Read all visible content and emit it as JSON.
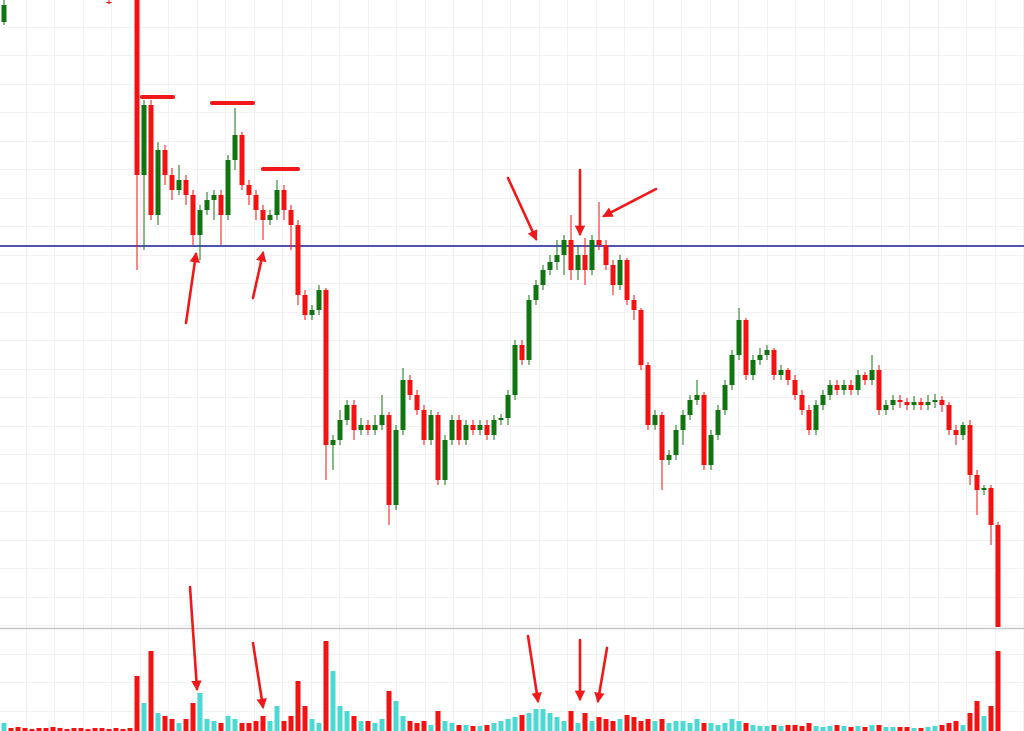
{
  "chart_data": {
    "type": "candlestick",
    "up_color": "#107510",
    "down_color": "#f21212",
    "ylim": [
      0,
      630
    ],
    "series": [
      {
        "open": [
          608,
          null,
          null,
          null,
          null,
          null,
          null,
          null,
          null,
          null,
          null,
          null,
          null,
          null,
          null,
          628,
          null,
          null,
          null,
          630,
          455,
          525,
          415,
          480,
          455,
          440,
          450,
          435,
          395,
          420,
          430,
          435,
          415,
          470,
          495,
          445,
          435,
          420,
          410,
          415,
          440,
          420,
          405,
          335,
          315,
          320,
          340,
          185,
          190,
          210,
          225,
          200,
          205,
          200,
          205,
          215,
          125,
          200,
          250,
          235,
          220,
          190,
          215,
          150,
          190,
          210,
          190,
          205,
          200,
          205,
          195,
          210,
          212,
          235,
          285,
          270,
          330,
          345,
          360,
          368,
          375,
          390,
          360,
          375,
          360,
          390,
          385,
          365,
          345,
          370,
          330,
          320,
          265,
          205,
          215,
          170,
          175,
          200,
          215,
          230,
          235,
          165,
          195,
          220,
          245,
          275,
          310,
          255,
          270,
          275,
          280,
          255,
          260,
          250,
          235,
          220,
          200,
          225,
          235,
          245,
          240,
          245,
          240,
          255,
          250,
          260,
          220,
          225,
          230,
          228,
          225,
          228,
          225,
          228,
          230,
          225,
          200,
          195,
          205,
          155,
          140,
          142,
          105
        ],
        "high": [
          630,
          null,
          null,
          null,
          null,
          null,
          null,
          null,
          null,
          null,
          null,
          null,
          null,
          null,
          null,
          630,
          null,
          null,
          null,
          630,
          530,
          530,
          488,
          485,
          462,
          465,
          455,
          440,
          425,
          438,
          440,
          440,
          475,
          522,
          498,
          450,
          440,
          425,
          420,
          450,
          445,
          425,
          410,
          340,
          325,
          345,
          342,
          195,
          220,
          230,
          230,
          212,
          210,
          215,
          235,
          218,
          205,
          262,
          255,
          240,
          225,
          220,
          218,
          195,
          215,
          215,
          210,
          210,
          210,
          210,
          215,
          216,
          240,
          290,
          290,
          335,
          350,
          365,
          375,
          390,
          395,
          415,
          385,
          392,
          395,
          428,
          390,
          370,
          375,
          372,
          335,
          322,
          268,
          220,
          218,
          180,
          205,
          220,
          235,
          250,
          238,
          200,
          225,
          250,
          280,
          322,
          312,
          275,
          282,
          285,
          282,
          265,
          262,
          255,
          240,
          225,
          230,
          240,
          250,
          250,
          250,
          250,
          260,
          258,
          275,
          265,
          230,
          235,
          235,
          232,
          234,
          232,
          235,
          236,
          234,
          228,
          205,
          208,
          210,
          160,
          145,
          145,
          108
        ],
        "low": [
          605,
          null,
          null,
          null,
          null,
          null,
          null,
          null,
          null,
          null,
          null,
          null,
          null,
          null,
          null,
          626,
          null,
          null,
          null,
          360,
          380,
          410,
          405,
          445,
          430,
          435,
          425,
          385,
          370,
          415,
          410,
          385,
          410,
          460,
          440,
          425,
          410,
          390,
          405,
          410,
          410,
          380,
          325,
          310,
          310,
          315,
          150,
          160,
          185,
          205,
          190,
          195,
          195,
          195,
          200,
          105,
          120,
          195,
          230,
          215,
          185,
          185,
          145,
          145,
          185,
          185,
          185,
          195,
          195,
          190,
          190,
          205,
          205,
          230,
          265,
          265,
          325,
          340,
          355,
          360,
          355,
          350,
          350,
          345,
          355,
          380,
          360,
          335,
          340,
          325,
          310,
          260,
          200,
          200,
          140,
          165,
          170,
          185,
          210,
          225,
          160,
          160,
          190,
          215,
          240,
          270,
          250,
          250,
          265,
          270,
          250,
          250,
          245,
          230,
          215,
          195,
          195,
          220,
          230,
          235,
          235,
          235,
          235,
          245,
          245,
          215,
          215,
          220,
          222,
          220,
          220,
          220,
          220,
          222,
          218,
          195,
          185,
          190,
          145,
          115,
          135,
          85,
          0
        ],
        "close": [
          625,
          null,
          null,
          null,
          null,
          null,
          null,
          null,
          null,
          null,
          null,
          null,
          null,
          null,
          null,
          627,
          null,
          null,
          null,
          455,
          525,
          415,
          480,
          455,
          440,
          450,
          435,
          395,
          420,
          430,
          435,
          415,
          470,
          495,
          445,
          435,
          420,
          410,
          415,
          440,
          420,
          405,
          335,
          315,
          320,
          340,
          185,
          190,
          210,
          225,
          200,
          205,
          200,
          205,
          215,
          125,
          200,
          250,
          235,
          220,
          190,
          215,
          150,
          190,
          210,
          190,
          205,
          200,
          205,
          195,
          210,
          212,
          235,
          285,
          270,
          330,
          345,
          360,
          368,
          375,
          390,
          360,
          375,
          360,
          390,
          385,
          365,
          345,
          370,
          330,
          320,
          265,
          205,
          215,
          170,
          175,
          200,
          215,
          230,
          235,
          165,
          195,
          220,
          245,
          275,
          310,
          255,
          270,
          275,
          280,
          255,
          260,
          250,
          235,
          220,
          200,
          225,
          235,
          245,
          240,
          245,
          240,
          255,
          250,
          260,
          220,
          225,
          230,
          228,
          225,
          228,
          225,
          228,
          230,
          225,
          200,
          195,
          205,
          155,
          140,
          142,
          105,
          0
        ]
      }
    ],
    "volume": {
      "up_color": "#4dd9d3",
      "down_color": "#f21212",
      "ylim": [
        0,
        100
      ],
      "values": [
        8,
        3,
        4,
        3,
        2,
        3,
        3,
        4,
        3,
        2,
        3,
        3,
        2,
        3,
        3,
        2,
        3,
        2,
        3,
        55,
        28,
        80,
        18,
        15,
        12,
        8,
        12,
        28,
        38,
        12,
        10,
        8,
        15,
        12,
        8,
        8,
        10,
        15,
        10,
        25,
        10,
        15,
        50,
        25,
        12,
        8,
        90,
        60,
        25,
        20,
        15,
        10,
        10,
        8,
        12,
        40,
        30,
        15,
        10,
        8,
        10,
        6,
        20,
        10,
        8,
        6,
        6,
        5,
        5,
        6,
        8,
        10,
        12,
        14,
        16,
        18,
        22,
        22,
        18,
        14,
        10,
        20,
        8,
        18,
        10,
        14,
        12,
        10,
        12,
        16,
        14,
        10,
        12,
        10,
        12,
        8,
        10,
        10,
        8,
        12,
        8,
        8,
        6,
        8,
        12,
        10,
        8,
        6,
        5,
        5,
        6,
        5,
        6,
        6,
        5,
        8,
        5,
        4,
        5,
        6,
        5,
        4,
        5,
        4,
        6,
        6,
        4,
        4,
        4,
        4,
        3,
        3,
        4,
        5,
        6,
        8,
        10,
        6,
        18,
        30,
        15,
        25,
        80
      ]
    },
    "hline": {
      "value": 384,
      "color": "#1a1a9e"
    }
  }
}
